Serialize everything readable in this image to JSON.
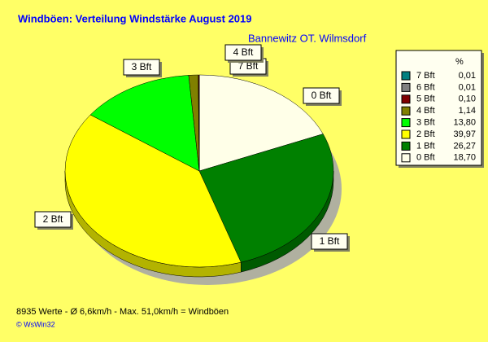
{
  "chart_data": {
    "type": "pie",
    "title": "Windböen: Verteilung Windstärke  August 2019",
    "subtitle": "Bannewitz OT. Wilmsdorf",
    "legend_header": "%",
    "categories": [
      "0 Bft",
      "1 Bft",
      "2 Bft",
      "3 Bft",
      "4 Bft",
      "5 Bft",
      "6 Bft",
      "7 Bft"
    ],
    "values": [
      18.7,
      26.27,
      39.97,
      13.8,
      1.14,
      0.1,
      0.01,
      0.01
    ],
    "value_labels": [
      "18,70",
      "26,27",
      "39,97",
      "13,80",
      "1,14",
      "0,10",
      "0,01",
      "0,01"
    ],
    "colors": [
      "#ffffe8",
      "#008000",
      "#ffff00",
      "#00ff00",
      "#808000",
      "#800000",
      "#808080",
      "#008080"
    ],
    "footer": "8935 Werte   -   Ø 6,6km/h  -  Max. 51,0km/h = Windböen",
    "credit": "© WsWin32"
  }
}
